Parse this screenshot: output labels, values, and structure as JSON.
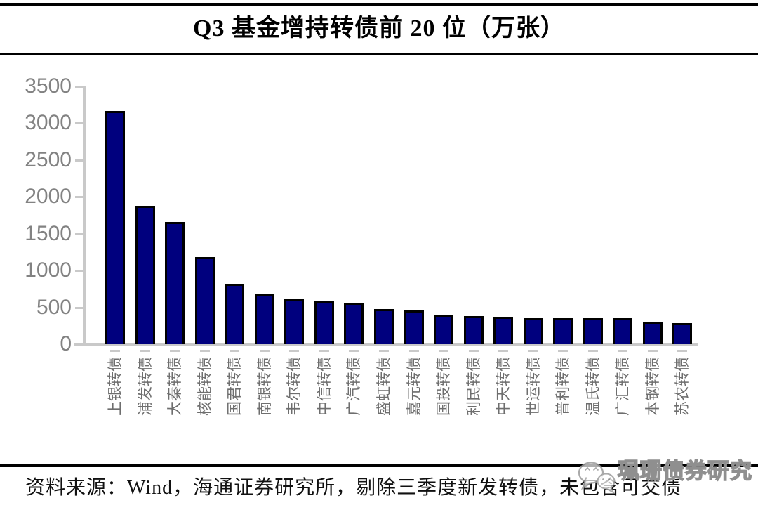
{
  "title": "Q3 基金增持转债前 20 位（万张）",
  "footer": {
    "source": "资料来源：Wind，海通证券研究所，剔除三季度新发转债，未包含可交债"
  },
  "watermark": {
    "icon": "wechat-icon",
    "label": "珮珊债券研究"
  },
  "chart_data": {
    "type": "bar",
    "title": "Q3 基金增持转债前 20 位（万张）",
    "unit": "万张",
    "categories": [
      "上银转债",
      "浦发转债",
      "大秦转债",
      "核能转债",
      "国君转债",
      "南银转债",
      "韦尔转债",
      "中信转债",
      "广汽转债",
      "盛虹转债",
      "嘉元转债",
      "国投转债",
      "利民转债",
      "中天转债",
      "世运转债",
      "普利转债",
      "温氏转债",
      "广汇转债",
      "本钢转债",
      "苏农转债"
    ],
    "values": [
      3170,
      1880,
      1660,
      1180,
      820,
      690,
      615,
      590,
      560,
      480,
      455,
      405,
      380,
      370,
      362,
      358,
      355,
      350,
      305,
      285
    ],
    "xlabel": "",
    "ylabel": "",
    "ylim": [
      0,
      3500
    ],
    "yticks": [
      0,
      500,
      1000,
      1500,
      2000,
      2500,
      3000,
      3500
    ],
    "grid": false,
    "legend": null,
    "colors": {
      "bar_fill": "#00007E",
      "bar_border": "#000000",
      "axis": "#C9C9C9",
      "y_tick_label": "#828282",
      "x_tick_label": "#6E6E6E"
    }
  }
}
